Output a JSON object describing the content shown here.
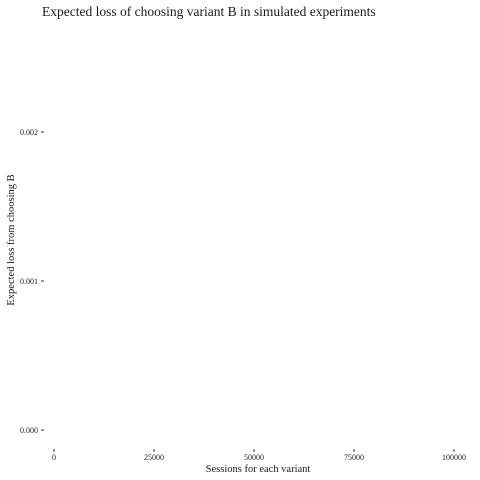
{
  "chart_data": {
    "type": "line",
    "title": "Expected loss of choosing variant B in simulated experiments",
    "xlabel": "Sessions for each variant",
    "ylabel": "Expected loss from choosing B",
    "xlim": [
      0,
      100000
    ],
    "ylim": [
      0,
      0.002
    ],
    "x_ticks": [
      0,
      25000,
      50000,
      75000,
      100000
    ],
    "x_tick_labels": [
      "0",
      "25000",
      "50000",
      "75000",
      "100000"
    ],
    "y_ticks": [
      0,
      0.001,
      0.002
    ],
    "y_tick_labels": [
      "0.000",
      "0.001",
      "0.002"
    ],
    "grid": false,
    "series": []
  }
}
